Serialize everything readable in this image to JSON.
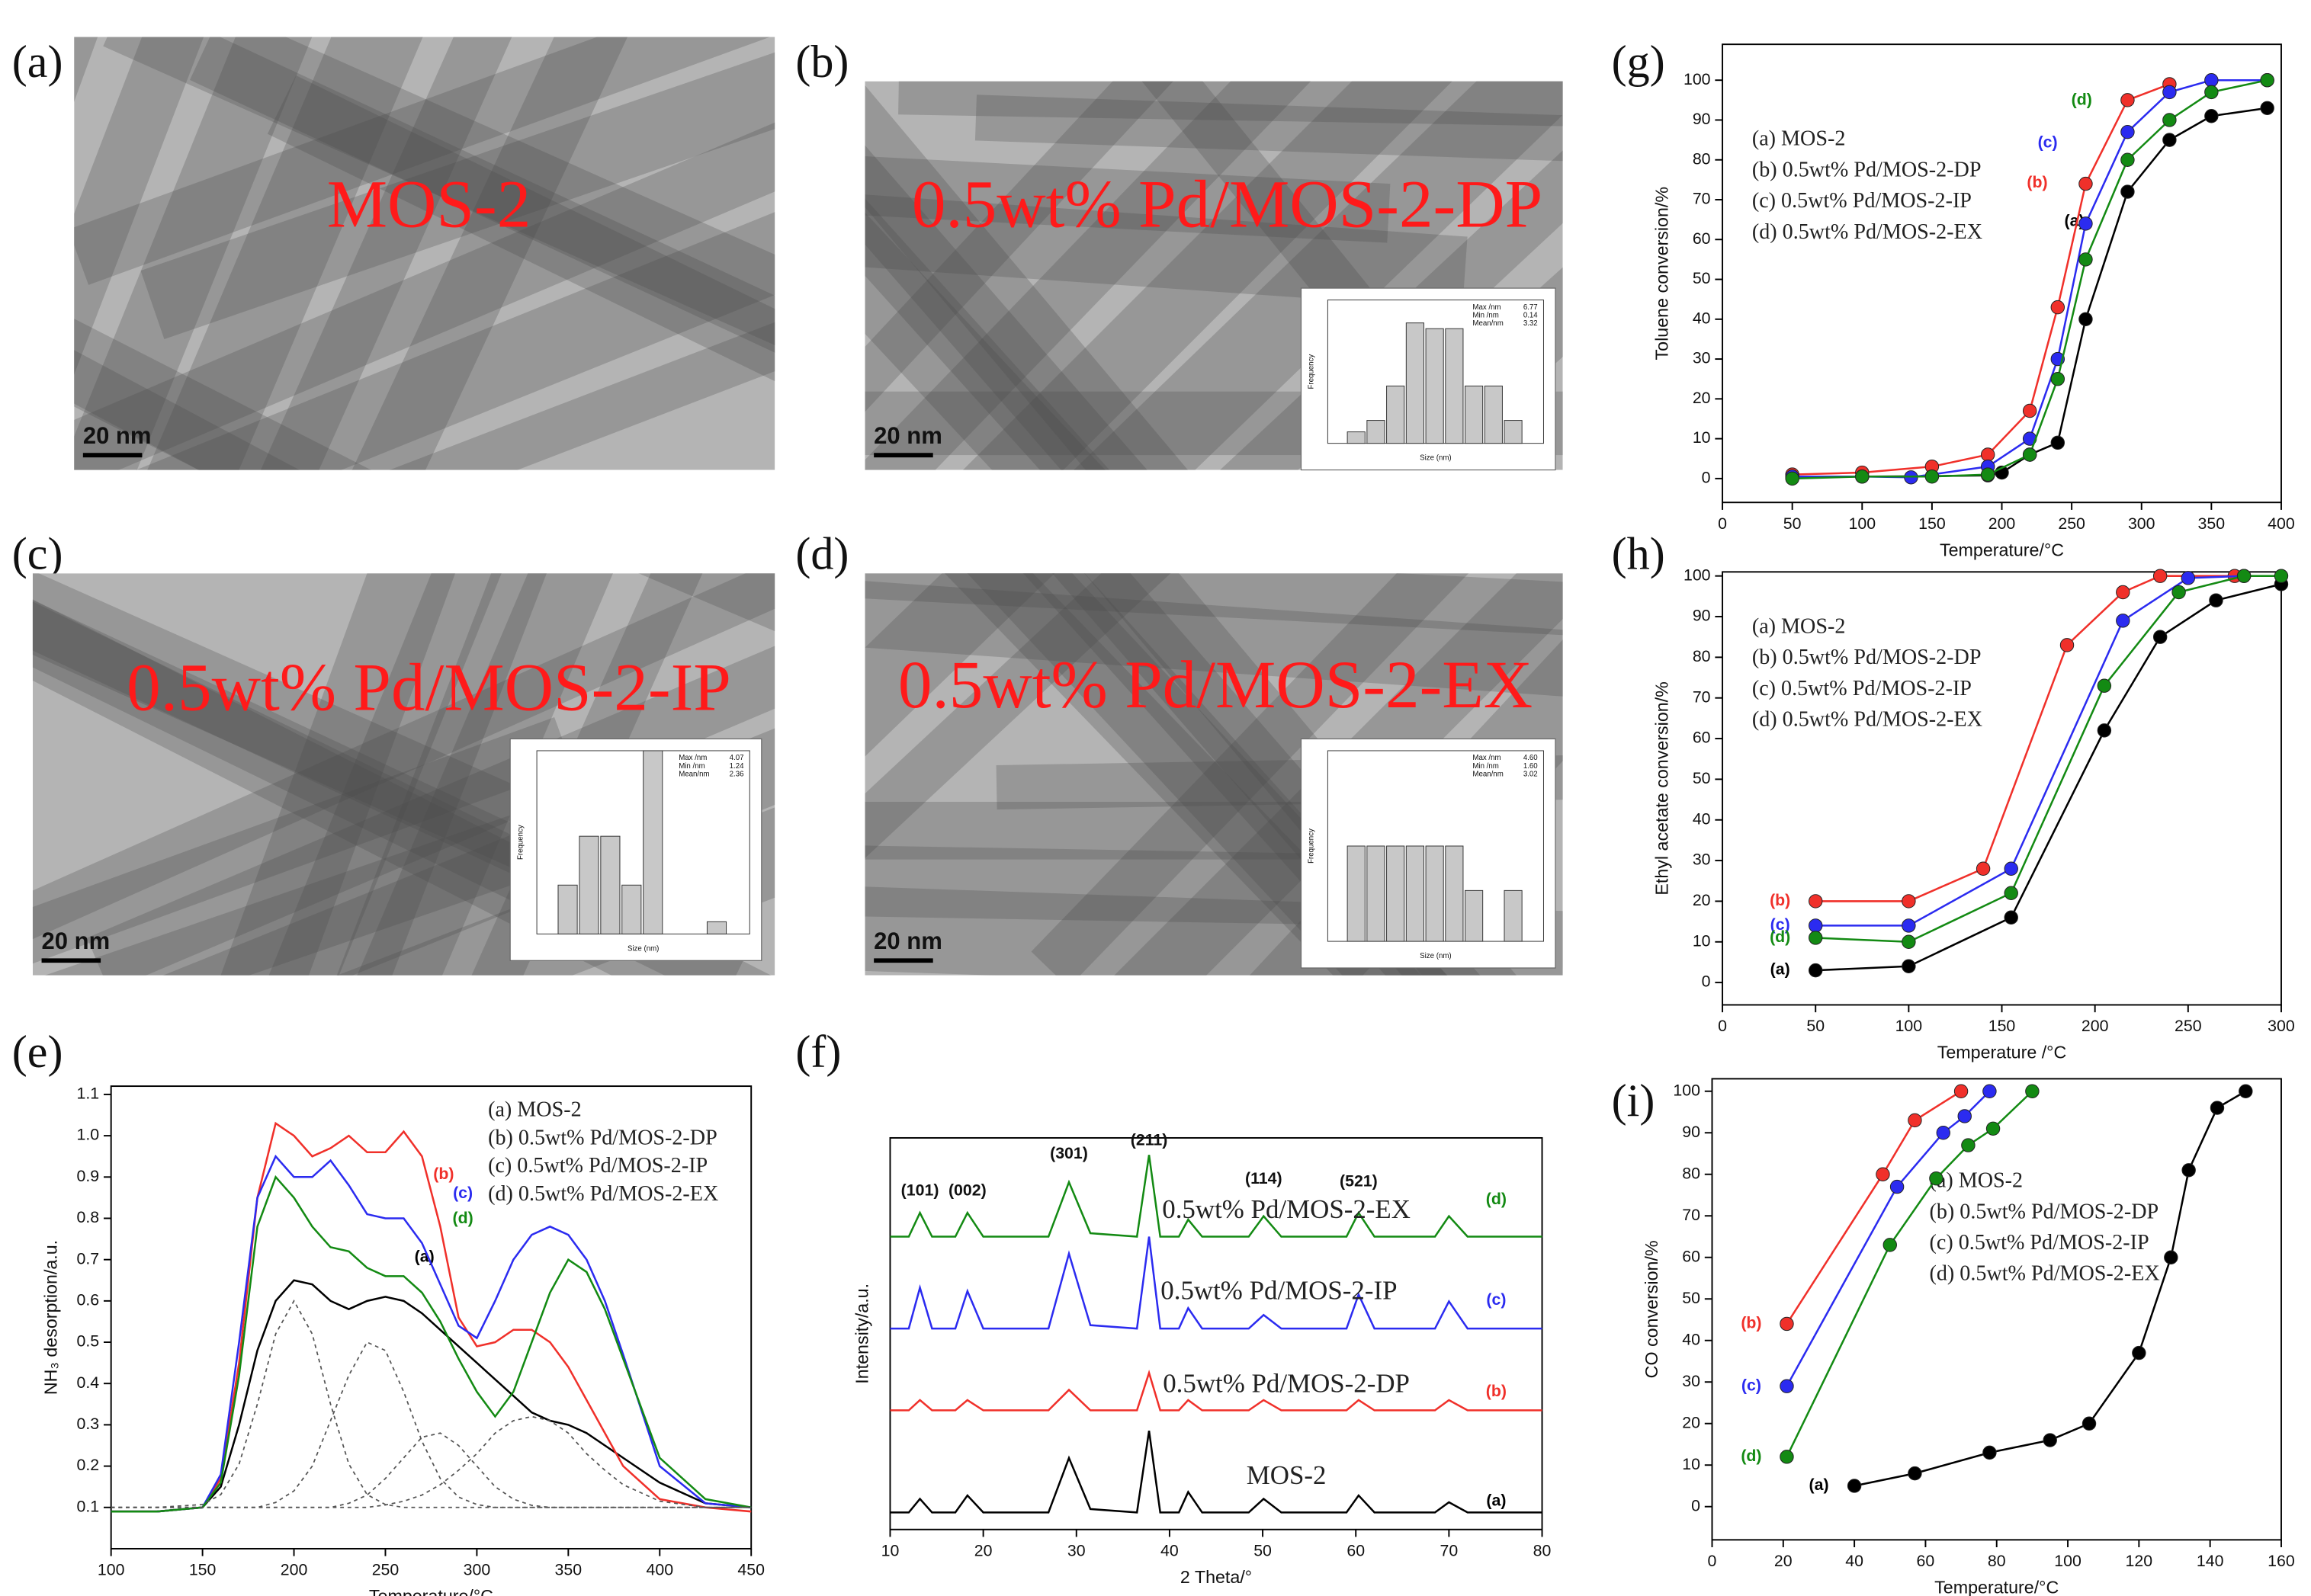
{
  "images": [
    {
      "label": "(a)",
      "caption": "MOS-2",
      "scale_bar": "20 nm"
    },
    {
      "label": "(b)",
      "caption": "0.5wt% Pd/MOS-2-DP",
      "scale_bar": "20 nm",
      "inset": {
        "ylabel": "Frequency",
        "xlabel": "Size (nm)",
        "stats": [
          "Max /nm",
          "Min /nm",
          "Mean/nm"
        ],
        "stat_values": [
          "6.77",
          "0.14",
          "3.32"
        ],
        "ylim": [
          0,
          0.25
        ],
        "values": [
          0.02,
          0.04,
          0.1,
          0.21,
          0.2,
          0.2,
          0.1,
          0.1,
          0.04
        ]
      }
    },
    {
      "label": "(c)",
      "caption": "0.5wt% Pd/MOS-2-IP",
      "scale_bar": "20 nm",
      "inset": {
        "ylabel": "Frequency",
        "xlabel": "Size (nm)",
        "stats": [
          "Max /nm",
          "Min /nm",
          "Mean/nm"
        ],
        "stat_values": [
          "4.07",
          "1.24",
          "2.36"
        ],
        "ylim": [
          0,
          0.3
        ],
        "values": [
          0.08,
          0.16,
          0.16,
          0.08,
          0.3,
          0,
          0,
          0.02
        ]
      }
    },
    {
      "label": "(d)",
      "caption": "0.5wt% Pd/MOS-2-EX",
      "scale_bar": "20 nm",
      "inset": {
        "ylabel": "Frequency",
        "xlabel": "Size (nm)",
        "stats": [
          "Max /nm",
          "Min /nm",
          "Mean/nm"
        ],
        "stat_values": [
          "4.60",
          "1.60",
          "3.02"
        ],
        "ylim": [
          0,
          0.3
        ],
        "values": [
          0.15,
          0.15,
          0.15,
          0.15,
          0.15,
          0.15,
          0.08,
          0,
          0.08
        ]
      }
    }
  ],
  "chart_data": [
    {
      "type": "line",
      "panel": "(e)",
      "xlabel": "Temperature/°C",
      "ylabel": "NH₃ desorption/a.u.",
      "legend": true,
      "markers": false,
      "xlim": [
        100,
        450
      ],
      "ylim": [
        0,
        1.12
      ],
      "xticks": [
        100,
        150,
        200,
        250,
        300,
        350,
        400,
        450
      ],
      "yticks": [
        0.1,
        0.2,
        0.3,
        0.4,
        0.5,
        0.6,
        0.7,
        0.8,
        0.9,
        {
          "value": 1,
          "label": "1.0"
        },
        1.1
      ],
      "x": [
        100,
        125,
        150,
        160,
        170,
        180,
        190,
        200,
        210,
        220,
        230,
        240,
        250,
        260,
        270,
        280,
        290,
        300,
        310,
        320,
        330,
        340,
        350,
        360,
        370,
        380,
        400,
        425,
        450
      ],
      "series": [
        {
          "name": "(a) MOS-2",
          "label": "(a)",
          "color": "#000000",
          "values": [
            0.09,
            0.09,
            0.1,
            0.15,
            0.3,
            0.48,
            0.6,
            0.65,
            0.64,
            0.6,
            0.58,
            0.6,
            0.61,
            0.6,
            0.57,
            0.53,
            0.49,
            0.45,
            0.41,
            0.37,
            0.33,
            0.31,
            0.3,
            0.28,
            0.25,
            0.22,
            0.16,
            0.11,
            0.1
          ]
        },
        {
          "name": "(b) 0.5wt% Pd/MOS-2-DP",
          "label": "(b)",
          "color": "#f0302a",
          "values": [
            0.09,
            0.09,
            0.1,
            0.17,
            0.45,
            0.85,
            1.03,
            1.0,
            0.95,
            0.97,
            1.0,
            0.96,
            0.96,
            1.01,
            0.95,
            0.78,
            0.56,
            0.49,
            0.5,
            0.53,
            0.53,
            0.5,
            0.44,
            0.36,
            0.28,
            0.2,
            0.12,
            0.1,
            0.09
          ]
        },
        {
          "name": "(c) 0.5wt% Pd/MOS-2-IP",
          "label": "(c)",
          "color": "#2b2bf0",
          "values": [
            0.09,
            0.09,
            0.1,
            0.18,
            0.5,
            0.85,
            0.95,
            0.9,
            0.9,
            0.94,
            0.88,
            0.81,
            0.8,
            0.8,
            0.74,
            0.64,
            0.54,
            0.51,
            0.6,
            0.7,
            0.76,
            0.78,
            0.76,
            0.7,
            0.6,
            0.47,
            0.2,
            0.11,
            0.1
          ]
        },
        {
          "name": "(d) 0.5wt% Pd/MOS-2-EX",
          "label": "(d)",
          "color": "#138a13",
          "values": [
            0.09,
            0.09,
            0.1,
            0.16,
            0.42,
            0.78,
            0.9,
            0.85,
            0.78,
            0.73,
            0.72,
            0.68,
            0.66,
            0.66,
            0.62,
            0.55,
            0.46,
            0.38,
            0.32,
            0.38,
            0.5,
            0.62,
            0.7,
            0.67,
            0.58,
            0.46,
            0.22,
            0.12,
            0.1
          ]
        },
        {
          "color": "#555555",
          "dash": true,
          "values": [
            0.1,
            0.1,
            0.107,
            0.131,
            0.205,
            0.35,
            0.52,
            0.6,
            0.52,
            0.35,
            0.205,
            0.131,
            0.107,
            0.1,
            0.1,
            0.1,
            0.1,
            0.1,
            0.1,
            0.1,
            0.1,
            0.1,
            0.1,
            0.1,
            0.1,
            0.1,
            0.1,
            0.1,
            0.1
          ]
        },
        {
          "color": "#555555",
          "dash": true,
          "values": [
            0.1,
            0.1,
            0.1,
            0.1,
            0.1,
            0.1,
            0.112,
            0.14,
            0.2,
            0.31,
            0.42,
            0.5,
            0.48,
            0.38,
            0.26,
            0.17,
            0.125,
            0.107,
            0.1,
            0.1,
            0.1,
            0.1,
            0.1,
            0.1,
            0.1,
            0.1,
            0.1,
            0.1,
            0.1
          ]
        },
        {
          "color": "#555555",
          "dash": true,
          "values": [
            0.1,
            0.1,
            0.1,
            0.1,
            0.1,
            0.1,
            0.1,
            0.1,
            0.1,
            0.1,
            0.11,
            0.13,
            0.17,
            0.22,
            0.27,
            0.28,
            0.25,
            0.2,
            0.15,
            0.12,
            0.105,
            0.1,
            0.1,
            0.1,
            0.1,
            0.1,
            0.1,
            0.1,
            0.1
          ]
        },
        {
          "color": "#555555",
          "dash": true,
          "values": [
            0.1,
            0.1,
            0.1,
            0.1,
            0.1,
            0.1,
            0.1,
            0.1,
            0.1,
            0.1,
            0.1,
            0.1,
            0.106,
            0.115,
            0.13,
            0.155,
            0.19,
            0.23,
            0.28,
            0.31,
            0.32,
            0.31,
            0.28,
            0.23,
            0.19,
            0.155,
            0.115,
            0.1,
            0.1
          ]
        }
      ]
    },
    {
      "type": "line",
      "panel": "(f)",
      "xlabel": "2 Theta/°",
      "ylabel": "Intensity/a.u.",
      "legend": false,
      "markers": false,
      "xlim": [
        10,
        80
      ],
      "ylim": [
        0,
        115
      ],
      "xticks": [
        10,
        20,
        30,
        40,
        50,
        60,
        70,
        80
      ],
      "annotations": [
        {
          "text": "(101)",
          "x": 13.2
        },
        {
          "text": "(002)",
          "x": 18.3
        },
        {
          "text": "(301)",
          "x": 29.2
        },
        {
          "text": "(211)",
          "x": 37.8
        },
        {
          "text": "(114)",
          "x": 50.1
        },
        {
          "text": "(521)",
          "x": 60.3
        }
      ],
      "x": [
        10,
        12,
        13.2,
        14.5,
        17,
        18.3,
        20,
        27,
        29.2,
        31.5,
        36.5,
        37.8,
        39,
        41,
        42,
        43.5,
        48.5,
        50.1,
        52,
        59,
        60.3,
        62,
        68.5,
        70,
        72,
        80
      ],
      "series": [
        {
          "name": "MOS-2",
          "label": "(a)",
          "color": "#000000",
          "values": [
            5,
            5,
            9,
            5,
            5,
            10,
            5,
            5,
            21,
            6,
            5,
            29,
            5,
            5,
            11,
            5,
            5,
            9,
            5,
            5,
            10,
            5,
            5,
            8,
            5,
            5
          ]
        },
        {
          "name": "0.5wt% Pd/MOS-2-DP",
          "label": "(b)",
          "color": "#f0302a",
          "values": [
            35,
            35,
            38,
            35,
            35,
            38,
            35,
            35,
            41,
            35,
            35,
            46,
            35,
            35,
            38,
            35,
            35,
            38,
            35,
            35,
            38,
            35,
            35,
            38,
            35,
            35
          ]
        },
        {
          "name": "0.5wt% Pd/MOS-2-IP",
          "label": "(c)",
          "color": "#2b2bf0",
          "values": [
            59,
            59,
            71,
            59,
            59,
            70,
            59,
            59,
            81,
            60,
            59,
            86,
            59,
            59,
            65,
            59,
            59,
            63,
            59,
            59,
            69,
            59,
            59,
            67,
            59,
            59
          ]
        },
        {
          "name": "0.5wt% Pd/MOS-2-EX",
          "label": "(d)",
          "color": "#138a13",
          "values": [
            86,
            86,
            93,
            86,
            86,
            93,
            86,
            86,
            102,
            87,
            86,
            110,
            86,
            86,
            91,
            86,
            86,
            92,
            86,
            86,
            93,
            86,
            86,
            92,
            86,
            86
          ]
        }
      ]
    },
    {
      "type": "line",
      "panel": "(g)",
      "xlabel": "Temperature/°C",
      "ylabel": "Toluene conversion/%",
      "legend": true,
      "markers": true,
      "xlim": [
        0,
        400
      ],
      "ylim": [
        -6,
        109
      ],
      "xticks": [
        0,
        50,
        100,
        150,
        200,
        250,
        300,
        350,
        400
      ],
      "yticks": [
        0,
        10,
        20,
        30,
        40,
        50,
        60,
        70,
        80,
        90,
        100
      ],
      "series": [
        {
          "name": "(a) MOS-2",
          "label": "(a)",
          "color": "#000000",
          "x": [
            50,
            100,
            150,
            190,
            200,
            220,
            240,
            260,
            290,
            320,
            350,
            390
          ],
          "values": [
            0.3,
            0.5,
            0.6,
            0.8,
            1.5,
            6,
            9,
            40,
            72,
            85,
            91,
            93
          ]
        },
        {
          "name": "(b) 0.5wt% Pd/MOS-2-DP",
          "label": "(b)",
          "color": "#f0302a",
          "x": [
            50,
            100,
            150,
            190,
            220,
            240,
            260,
            290,
            320
          ],
          "values": [
            1,
            1.5,
            3,
            6,
            17,
            43,
            74,
            95,
            99
          ]
        },
        {
          "name": "(c) 0.5wt% Pd/MOS-2-IP",
          "label": "(c)",
          "color": "#2b2bf0",
          "x": [
            50,
            100,
            135,
            190,
            220,
            240,
            260,
            290,
            320,
            350,
            390
          ],
          "values": [
            0.5,
            0.5,
            0.3,
            3,
            10,
            30,
            64,
            87,
            97,
            100,
            100
          ]
        },
        {
          "name": "(d) 0.5wt% Pd/MOS-2-EX",
          "label": "(d)",
          "color": "#138a13",
          "x": [
            50,
            100,
            150,
            190,
            220,
            240,
            260,
            290,
            320,
            350,
            390
          ],
          "values": [
            0,
            0.5,
            0.5,
            1,
            6,
            25,
            55,
            80,
            90,
            97,
            100
          ]
        }
      ]
    },
    {
      "type": "line",
      "panel": "(h)",
      "xlabel": "Temperature /°C",
      "ylabel": "Ethyl acetate conversion/%",
      "legend": true,
      "markers": true,
      "xlim": [
        0,
        300
      ],
      "ylim": [
        -5.5,
        101
      ],
      "xticks": [
        0,
        50,
        100,
        150,
        200,
        250,
        300
      ],
      "yticks": [
        0,
        10,
        20,
        30,
        40,
        50,
        60,
        70,
        80,
        90,
        100
      ],
      "series": [
        {
          "name": "(a) MOS-2",
          "label": "(a)",
          "color": "#000000",
          "x": [
            50,
            100,
            155,
            205,
            235,
            265,
            300
          ],
          "values": [
            3,
            4,
            16,
            62,
            85,
            94,
            98
          ]
        },
        {
          "name": "(b) 0.5wt% Pd/MOS-2-DP",
          "label": "(b)",
          "color": "#f0302a",
          "x": [
            50,
            100,
            140,
            185,
            215,
            235,
            275
          ],
          "values": [
            20,
            20,
            28,
            83,
            96,
            100,
            100
          ]
        },
        {
          "name": "(c) 0.5wt% Pd/MOS-2-IP",
          "label": "(c)",
          "color": "#2b2bf0",
          "x": [
            50,
            100,
            155,
            215,
            250,
            280
          ],
          "values": [
            14,
            14,
            28,
            89,
            99.5,
            100
          ]
        },
        {
          "name": "(d) 0.5wt% Pd/MOS-2-EX",
          "label": "(d)",
          "color": "#138a13",
          "x": [
            50,
            100,
            155,
            205,
            245,
            280,
            300
          ],
          "values": [
            11,
            10,
            22,
            73,
            96,
            100,
            100
          ]
        }
      ]
    },
    {
      "type": "line",
      "panel": "(i)",
      "xlabel": "Temperature/°C",
      "ylabel": "CO conversion/%",
      "legend": true,
      "markers": true,
      "xlim": [
        0,
        160
      ],
      "ylim": [
        -8,
        103
      ],
      "xticks": [
        0,
        20,
        40,
        60,
        80,
        100,
        120,
        140,
        160
      ],
      "yticks": [
        0,
        10,
        20,
        30,
        40,
        50,
        60,
        70,
        80,
        90,
        100
      ],
      "series": [
        {
          "name": "(a) MOS-2",
          "label": "(a)",
          "color": "#000000",
          "x": [
            40,
            57,
            78,
            95,
            106,
            120,
            129,
            134,
            142,
            150
          ],
          "values": [
            5,
            8,
            13,
            16,
            20,
            37,
            60,
            81,
            96,
            100
          ]
        },
        {
          "name": "(b) 0.5wt% Pd/MOS-2-DP",
          "label": "(b)",
          "color": "#f0302a",
          "x": [
            21,
            48,
            57,
            70
          ],
          "values": [
            44,
            80,
            93,
            100
          ]
        },
        {
          "name": "(c) 0.5wt% Pd/MOS-2-IP",
          "label": "(c)",
          "color": "#2b2bf0",
          "x": [
            21,
            52,
            65,
            71,
            78
          ],
          "values": [
            29,
            77,
            90,
            94,
            100
          ]
        },
        {
          "name": "(d) 0.5wt% Pd/MOS-2-EX",
          "label": "(d)",
          "color": "#138a13",
          "x": [
            21,
            50,
            63,
            72,
            79,
            90
          ],
          "values": [
            12,
            63,
            79,
            87,
            91,
            100
          ]
        }
      ]
    }
  ]
}
